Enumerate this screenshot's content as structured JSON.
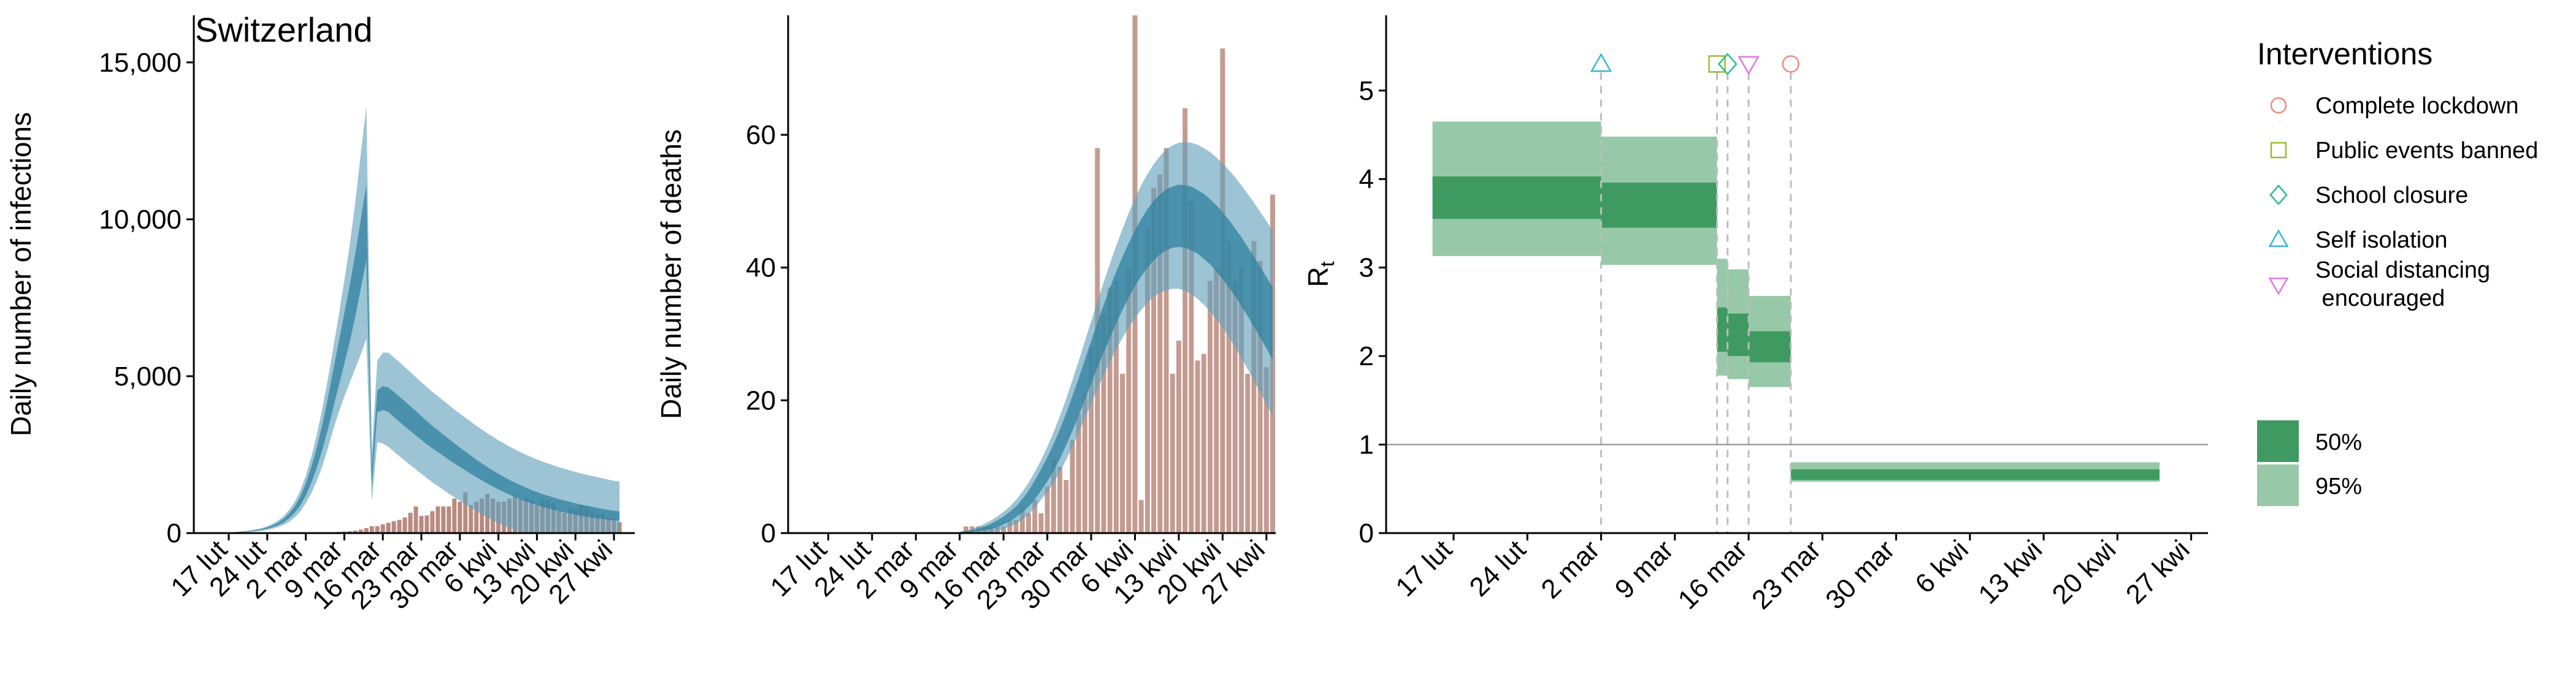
{
  "chart_data": [
    {
      "type": "bar",
      "title": "Switzerland",
      "ylabel": "Daily number of infections",
      "ylim": [
        0,
        16500
      ],
      "yticks": [
        0,
        5000,
        10000,
        15000
      ],
      "ytick_labels": [
        "0",
        "5,000",
        "10,000",
        "15,000"
      ],
      "xtick_labels": [
        "17 lut",
        "24 lut",
        "2 mar",
        "9 mar",
        "16 mar",
        "23 mar",
        "30 mar",
        "6 kwi",
        "13 kwi",
        "20 kwi",
        "27 kwi"
      ],
      "bar_color": "#b98a80",
      "band_outer_color": "#5f9fbb",
      "band_inner_color": "#2f809f",
      "days": 74,
      "reported_cases": [
        0,
        0,
        0,
        0,
        0,
        0,
        0,
        0,
        0,
        0,
        0,
        0,
        0,
        0,
        0,
        0,
        0,
        0,
        0,
        0,
        30,
        30,
        40,
        50,
        60,
        80,
        110,
        160,
        220,
        220,
        280,
        330,
        380,
        420,
        500,
        650,
        850,
        550,
        560,
        700,
        850,
        850,
        850,
        1100,
        1000,
        1300,
        900,
        1000,
        1100,
        1250,
        1100,
        1000,
        1000,
        1100,
        1200,
        1100,
        1100,
        1050,
        900,
        1100,
        1050,
        950,
        700,
        650,
        800,
        750,
        900,
        850,
        700,
        600,
        600,
        500,
        450,
        350
      ],
      "estimate_median": [
        10,
        13,
        18,
        25,
        34,
        47,
        64,
        87,
        118,
        161,
        219,
        298,
        405,
        551,
        750,
        1020,
        1390,
        1850,
        2400,
        3050,
        3800,
        4600,
        5400,
        6200,
        7000,
        7900,
        8900,
        9900,
        1800,
        4200,
        4300,
        4250,
        4100,
        3950,
        3800,
        3650,
        3500,
        3350,
        3200,
        3060,
        2930,
        2800,
        2670,
        2540,
        2420,
        2300,
        2180,
        2060,
        1950,
        1840,
        1740,
        1640,
        1550,
        1460,
        1380,
        1300,
        1230,
        1160,
        1100,
        1040,
        990,
        940,
        890,
        850,
        810,
        770,
        730,
        700,
        670,
        640,
        610,
        580,
        560,
        540
      ],
      "band50_half": [
        2,
        3,
        4,
        5,
        6,
        8,
        10,
        13,
        17,
        22,
        30,
        40,
        55,
        75,
        100,
        140,
        190,
        250,
        320,
        400,
        500,
        600,
        700,
        800,
        900,
        1000,
        1100,
        1200,
        300,
        350,
        380,
        390,
        400,
        400,
        400,
        395,
        390,
        380,
        370,
        360,
        350,
        340,
        330,
        320,
        310,
        300,
        290,
        280,
        270,
        262,
        255,
        248,
        242,
        236,
        230,
        225,
        220,
        215,
        210,
        206,
        202,
        198,
        194,
        190,
        186,
        182,
        178,
        174,
        170,
        166,
        162,
        158,
        154,
        150
      ],
      "band95_half": [
        5,
        6,
        8,
        10,
        14,
        18,
        24,
        32,
        43,
        58,
        78,
        105,
        140,
        190,
        250,
        330,
        440,
        580,
        740,
        920,
        1100,
        1300,
        1550,
        1850,
        2200,
        2650,
        3200,
        3700,
        800,
        1300,
        1450,
        1500,
        1500,
        1500,
        1490,
        1480,
        1470,
        1460,
        1450,
        1440,
        1430,
        1420,
        1410,
        1400,
        1390,
        1380,
        1370,
        1360,
        1350,
        1340,
        1330,
        1320,
        1310,
        1300,
        1290,
        1280,
        1270,
        1260,
        1250,
        1240,
        1230,
        1220,
        1210,
        1200,
        1190,
        1180,
        1170,
        1160,
        1150,
        1140,
        1130,
        1120,
        1110,
        1100
      ]
    },
    {
      "type": "bar",
      "title": "",
      "ylabel": "Daily number of deaths",
      "ylim": [
        0,
        78
      ],
      "yticks": [
        0,
        20,
        40,
        60
      ],
      "ytick_labels": [
        "0",
        "20",
        "40",
        "60"
      ],
      "xtick_labels": [
        "17 lut",
        "24 lut",
        "2 mar",
        "9 mar",
        "16 mar",
        "23 mar",
        "30 mar",
        "6 kwi",
        "13 kwi",
        "20 kwi",
        "27 kwi"
      ],
      "bar_color": "#c49b91",
      "band_outer_color": "#5f9fbb",
      "band_inner_color": "#2f809f",
      "days": 74,
      "reported_deaths": [
        0,
        0,
        0,
        0,
        0,
        0,
        0,
        0,
        0,
        0,
        0,
        0,
        0,
        0,
        0,
        0,
        0,
        0,
        0,
        0,
        0,
        0,
        0,
        0,
        1,
        1,
        1,
        1,
        1,
        1,
        1,
        2,
        2,
        4,
        3,
        5,
        3,
        7,
        11,
        10,
        8,
        14,
        18,
        21,
        28,
        58,
        33,
        37,
        38,
        24,
        40,
        78,
        5,
        46,
        52,
        54,
        58,
        24,
        29,
        64,
        50,
        26,
        27,
        38,
        40,
        73,
        44,
        38,
        40,
        24,
        44,
        41,
        25,
        51
      ],
      "estimate_median": [
        0,
        0,
        0,
        0,
        0,
        0,
        0,
        0,
        0,
        0,
        0,
        0,
        0,
        0,
        0,
        0,
        0,
        0,
        0,
        0,
        0,
        0,
        0,
        0.1,
        0.2,
        0.3,
        0.5,
        0.7,
        1,
        1.4,
        1.9,
        2.5,
        3.2,
        4.1,
        5.2,
        6.5,
        8,
        9.6,
        11.4,
        13.4,
        15.6,
        18,
        20.5,
        23.1,
        25.7,
        28.3,
        30.8,
        33.2,
        35.5,
        37.6,
        39.6,
        41.4,
        43,
        44.4,
        45.6,
        46.5,
        47.2,
        47.6,
        47.8,
        47.7,
        47.4,
        46.9,
        46.2,
        45.4,
        44.4,
        43.3,
        42.1,
        40.8,
        39.4,
        37.9,
        36.4,
        34.8,
        33.2,
        31.6
      ],
      "band50_half": [
        0,
        0,
        0,
        0,
        0,
        0,
        0,
        0,
        0,
        0,
        0,
        0,
        0,
        0,
        0,
        0,
        0,
        0,
        0,
        0,
        0,
        0,
        0,
        0.05,
        0.1,
        0.15,
        0.2,
        0.3,
        0.4,
        0.5,
        0.6,
        0.7,
        0.8,
        1,
        1.2,
        1.4,
        1.6,
        1.8,
        2,
        2.2,
        2.4,
        2.6,
        2.8,
        3,
        3.2,
        3.4,
        3.6,
        3.8,
        3.9,
        4,
        4.1,
        4.2,
        4.3,
        4.4,
        4.5,
        4.5,
        4.6,
        4.6,
        4.7,
        4.7,
        4.8,
        4.8,
        4.9,
        4.9,
        5,
        5,
        5.1,
        5.1,
        5.2,
        5.2,
        5.3,
        5.3,
        5.4,
        5.4
      ],
      "band95_half": [
        0,
        0,
        0,
        0,
        0,
        0,
        0,
        0,
        0,
        0,
        0,
        0,
        0,
        0,
        0,
        0,
        0,
        0,
        0,
        0,
        0,
        0,
        0,
        0.1,
        0.2,
        0.3,
        0.5,
        0.7,
        0.9,
        1.1,
        1.3,
        1.5,
        1.8,
        2.1,
        2.4,
        2.7,
        3,
        3.4,
        3.8,
        4.2,
        4.6,
        5,
        5.4,
        5.8,
        6.2,
        6.6,
        7,
        7.4,
        7.8,
        8.2,
        8.6,
        9,
        9.4,
        9.7,
        10,
        10.3,
        10.6,
        10.8,
        11,
        11.2,
        11.4,
        11.6,
        11.8,
        12,
        12.2,
        12.4,
        12.6,
        12.8,
        13,
        13.2,
        13.4,
        13.6,
        13.8,
        14
      ]
    },
    {
      "type": "area",
      "title": "",
      "ylabel": "R",
      "ylabel_subscript": "t",
      "ylim": [
        0,
        5.85
      ],
      "yticks": [
        0,
        1,
        2,
        3,
        4,
        5
      ],
      "ytick_labels": [
        "0",
        "1",
        "2",
        "3",
        "4",
        "5"
      ],
      "xtick_labels": [
        "17 lut",
        "24 lut",
        "2 mar",
        "9 mar",
        "16 mar",
        "23 mar",
        "30 mar",
        "6 kwi",
        "13 kwi",
        "20 kwi",
        "27 kwi"
      ],
      "reference_line": 1,
      "band50_color": "#3f9a62",
      "band95_color": "#97c9a8",
      "segments": [
        {
          "x_start": "2020-02-15",
          "x_end": "2020-03-02",
          "lo95": 3.13,
          "lo50": 3.55,
          "hi50": 4.03,
          "hi95": 4.65
        },
        {
          "x_start": "2020-03-02",
          "x_end": "2020-03-13",
          "lo95": 3.03,
          "lo50": 3.45,
          "hi50": 3.96,
          "hi95": 4.48
        },
        {
          "x_start": "2020-03-13",
          "x_end": "2020-03-14",
          "lo95": 1.78,
          "lo50": 2.05,
          "hi50": 2.55,
          "hi95": 3.1
        },
        {
          "x_start": "2020-03-14",
          "x_end": "2020-03-16",
          "lo95": 1.74,
          "lo50": 2.0,
          "hi50": 2.48,
          "hi95": 2.98
        },
        {
          "x_start": "2020-03-16",
          "x_end": "2020-03-20",
          "lo95": 1.65,
          "lo50": 1.93,
          "hi50": 2.28,
          "hi95": 2.68
        },
        {
          "x_start": "2020-03-20",
          "x_end": "2020-04-24",
          "lo95": 0.58,
          "lo50": 0.6,
          "hi50": 0.72,
          "hi95": 0.8
        }
      ],
      "interventions": [
        {
          "name": "Self isolation",
          "date": "2020-03-02",
          "marker": "triangle-up",
          "color": "#36b7d8"
        },
        {
          "name": "Public events banned",
          "date": "2020-03-13",
          "marker": "square",
          "color": "#9bbb31"
        },
        {
          "name": "School closure",
          "date": "2020-03-14",
          "marker": "diamond",
          "color": "#2cbf8e"
        },
        {
          "name": "Social distancing encouraged",
          "date": "2020-03-16",
          "marker": "triangle-down",
          "color": "#e376e6"
        },
        {
          "name": "Complete lockdown",
          "date": "2020-03-20",
          "marker": "circle",
          "color": "#ee8a78"
        }
      ]
    }
  ],
  "legend": {
    "interventions_title": "Interventions",
    "interventions_items": [
      {
        "label": "Complete lockdown",
        "marker": "circle",
        "color": "#ee8a78"
      },
      {
        "label": "Public events banned",
        "marker": "square",
        "color": "#9bbb31"
      },
      {
        "label": "School closure",
        "marker": "diamond",
        "color": "#2cbf8e"
      },
      {
        "label": "Self isolation",
        "marker": "triangle-up",
        "color": "#36b7d8"
      },
      {
        "label": "Social distancing\n encouraged",
        "marker": "triangle-down",
        "color": "#e376e6"
      }
    ],
    "bands_items": [
      {
        "label": "50%",
        "color": "#3f9a62"
      },
      {
        "label": "95%",
        "color": "#97c9a8"
      }
    ]
  }
}
